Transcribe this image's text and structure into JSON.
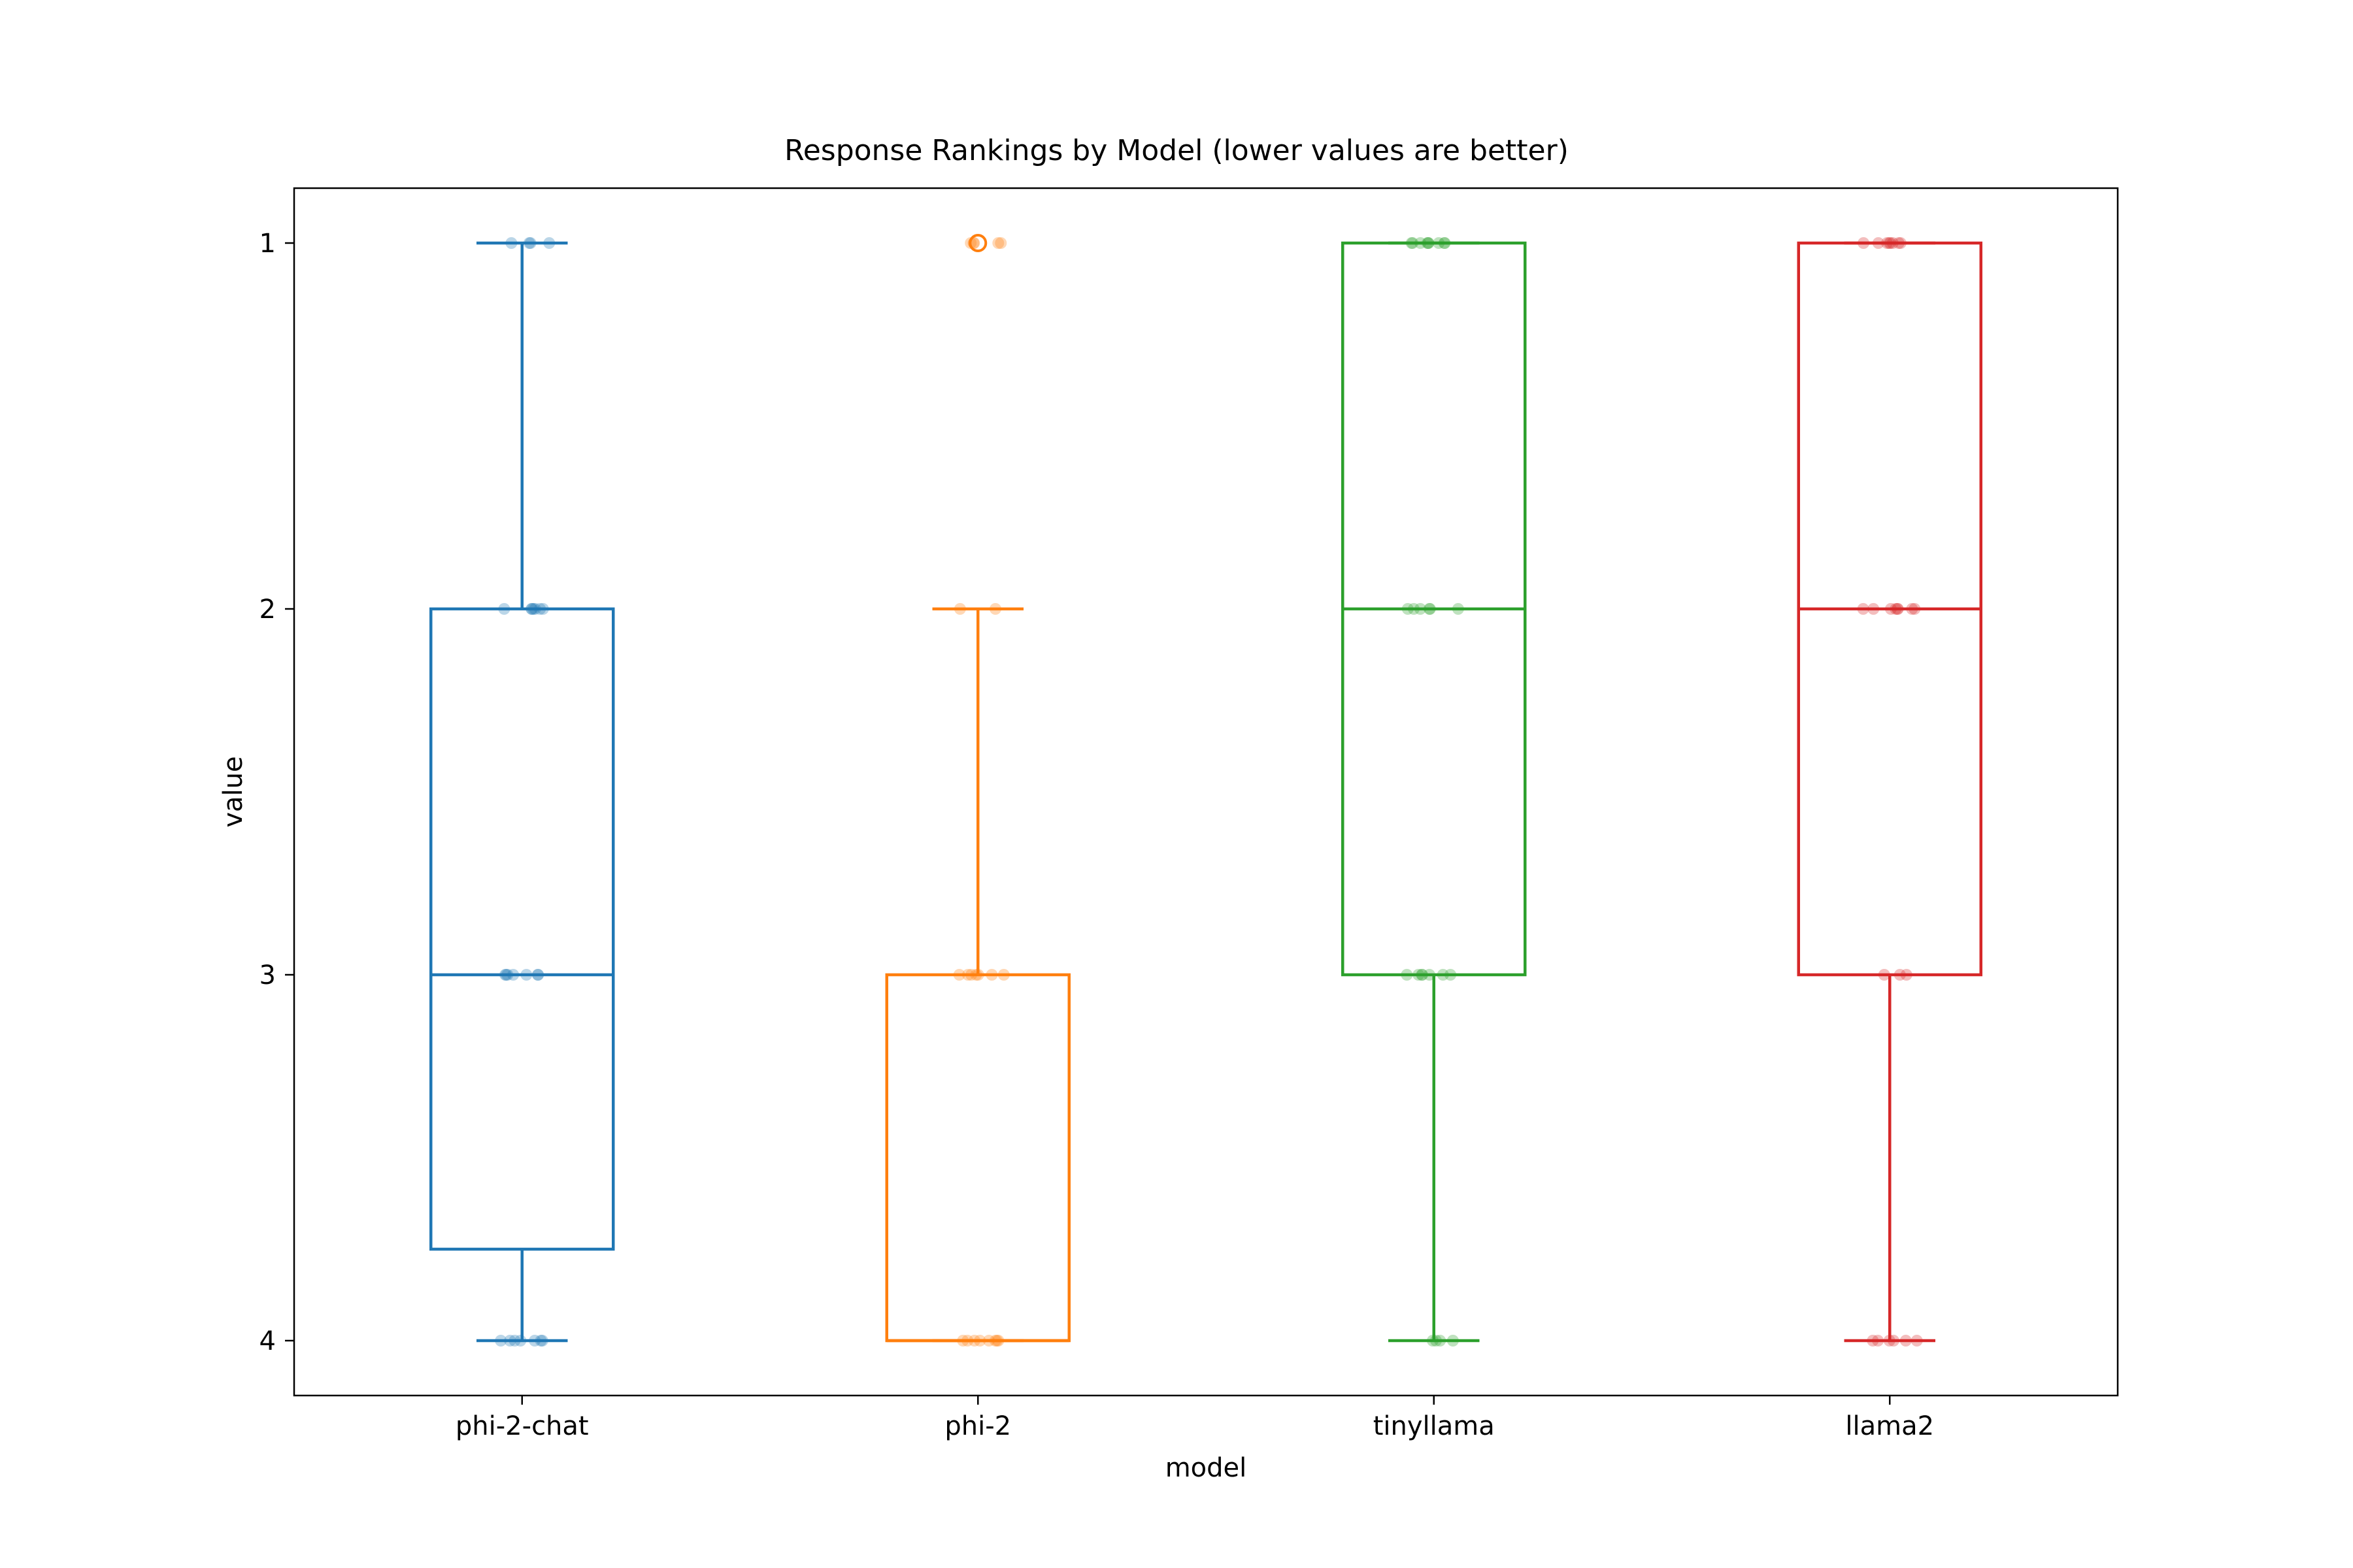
{
  "chart_data": {
    "type": "box",
    "title": "Response Rankings by Model (lower values are better)",
    "xlabel": "model",
    "ylabel": "value",
    "categories": [
      "phi-2-chat",
      "phi-2",
      "tinyllama",
      "llama2"
    ],
    "ylim": [
      4.15,
      0.85
    ],
    "y_inverted": true,
    "yticks": [
      1,
      2,
      3,
      4
    ],
    "colors": [
      "#1f77b4",
      "#ff7f0e",
      "#2ca02c",
      "#d62728"
    ],
    "boxes": [
      {
        "name": "phi-2-chat",
        "whisker_low": 1,
        "q1": 2,
        "median": 3,
        "q3": 3.75,
        "whisker_high": 4,
        "outliers": []
      },
      {
        "name": "phi-2",
        "whisker_low": 2,
        "q1": 3,
        "median": 4,
        "q3": 4,
        "whisker_high": 4,
        "outliers": [
          1
        ]
      },
      {
        "name": "tinyllama",
        "whisker_low": 1,
        "q1": 1,
        "median": 2,
        "q3": 3,
        "whisker_high": 4,
        "outliers": []
      },
      {
        "name": "llama2",
        "whisker_low": 1,
        "q1": 1,
        "median": 2,
        "q3": 3,
        "whisker_high": 4,
        "outliers": []
      }
    ],
    "points": [
      {
        "name": "phi-2-chat",
        "values": [
          1,
          1,
          1,
          1,
          2,
          2,
          2,
          2,
          2,
          2,
          2,
          3,
          3,
          3,
          3,
          3,
          3,
          3,
          4,
          4,
          4,
          4,
          4,
          4,
          4
        ]
      },
      {
        "name": "phi-2",
        "values": [
          1,
          1,
          1,
          1,
          1,
          2,
          2,
          3,
          3,
          3,
          3,
          3,
          3,
          3,
          4,
          4,
          4,
          4,
          4,
          4,
          4,
          4
        ]
      },
      {
        "name": "tinyllama",
        "values": [
          1,
          1,
          1,
          1,
          1,
          1,
          1,
          1,
          1,
          2,
          2,
          2,
          2,
          2,
          2,
          3,
          3,
          3,
          3,
          3,
          3,
          3,
          4,
          4,
          4,
          4
        ]
      },
      {
        "name": "llama2",
        "values": [
          1,
          1,
          1,
          1,
          1,
          1,
          1,
          1,
          2,
          2,
          2,
          2,
          2,
          2,
          2,
          2,
          3,
          3,
          3,
          4,
          4,
          4,
          4,
          4,
          4
        ]
      }
    ],
    "grid": false
  }
}
